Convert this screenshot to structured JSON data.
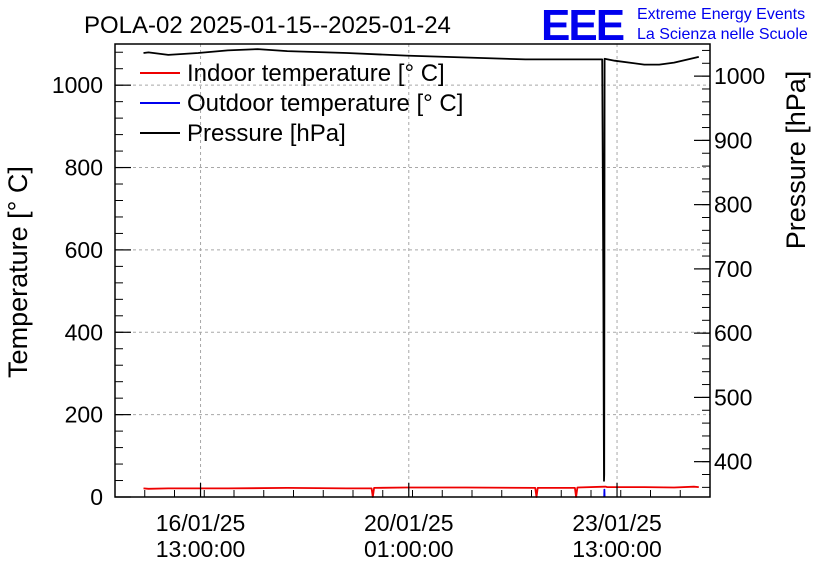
{
  "logo": {
    "mark": "EEE",
    "line1": "Extreme Energy Events",
    "line2": "La Scienza nelle Scuole"
  },
  "chart_data": {
    "type": "line",
    "title": "POLA-02 2025-01-15--2025-01-24",
    "ylabel": "Temperature [° C]",
    "y2label": "Pressure [hPa]",
    "grid": true,
    "legend_position": "top-left",
    "x_start": "2025-01-15 02:30:00",
    "x_end": "2025-01-25 02:30:00",
    "ylim": [
      0,
      1100
    ],
    "y2lim": [
      345,
      1050
    ],
    "y_ticks": [
      0,
      200,
      400,
      600,
      800,
      1000
    ],
    "y2_ticks": [
      400,
      500,
      600,
      700,
      800,
      900,
      1000
    ],
    "x_ticks": [
      {
        "x": "2025-01-16 13:00:00",
        "date": "16/01/25",
        "time": "13:00:00"
      },
      {
        "x": "2025-01-20 01:00:00",
        "date": "20/01/25",
        "time": "01:00:00"
      },
      {
        "x": "2025-01-23 13:00:00",
        "date": "23/01/25",
        "time": "13:00:00"
      }
    ],
    "series": [
      {
        "name": "Indoor temperature [° C]",
        "color": "#ee0000",
        "axis": "left",
        "points": [
          [
            "2025-01-15 14:00:00",
            21
          ],
          [
            "2025-01-15 16:00:00",
            20
          ],
          [
            "2025-01-16 00:00:00",
            21
          ],
          [
            "2025-01-17 00:00:00",
            21
          ],
          [
            "2025-01-18 00:00:00",
            22
          ],
          [
            "2025-01-19 00:00:00",
            21
          ],
          [
            "2025-01-19 10:00:00",
            21
          ],
          [
            "2025-01-19 10:30:00",
            0
          ],
          [
            "2025-01-19 11:00:00",
            22
          ],
          [
            "2025-01-20 00:00:00",
            23
          ],
          [
            "2025-01-21 00:00:00",
            23
          ],
          [
            "2025-01-22 04:00:00",
            22
          ],
          [
            "2025-01-22 04:30:00",
            0
          ],
          [
            "2025-01-22 05:00:00",
            22
          ],
          [
            "2025-01-22 20:00:00",
            22
          ],
          [
            "2025-01-22 20:30:00",
            0
          ],
          [
            "2025-01-22 21:00:00",
            23
          ],
          [
            "2025-01-23 08:00:00",
            25
          ],
          [
            "2025-01-23 08:30:00",
            25
          ],
          [
            "2025-01-23 09:00:00",
            24
          ],
          [
            "2025-01-24 00:00:00",
            24
          ],
          [
            "2025-01-24 12:00:00",
            23
          ],
          [
            "2025-01-24 20:00:00",
            25
          ],
          [
            "2025-01-24 22:00:00",
            24
          ]
        ]
      },
      {
        "name": "Outdoor temperature [° C]",
        "color": "#0000ee",
        "axis": "left",
        "points": [
          [
            "2025-01-23 07:50:00",
            0
          ],
          [
            "2025-01-23 07:55:00",
            18
          ],
          [
            "2025-01-23 08:00:00",
            0
          ]
        ]
      },
      {
        "name": "Pressure [hPa]",
        "color": "#000000",
        "axis": "right",
        "points": [
          [
            "2025-01-15 14:00:00",
            1036
          ],
          [
            "2025-01-15 16:00:00",
            1037
          ],
          [
            "2025-01-16 00:00:00",
            1033
          ],
          [
            "2025-01-16 12:00:00",
            1036
          ],
          [
            "2025-01-17 00:00:00",
            1040
          ],
          [
            "2025-01-17 12:00:00",
            1042
          ],
          [
            "2025-01-18 00:00:00",
            1039
          ],
          [
            "2025-01-19 00:00:00",
            1036
          ],
          [
            "2025-01-20 00:00:00",
            1032
          ],
          [
            "2025-01-21 00:00:00",
            1029
          ],
          [
            "2025-01-22 00:00:00",
            1026
          ],
          [
            "2025-01-23 00:00:00",
            1026
          ],
          [
            "2025-01-23 06:00:00",
            1026
          ],
          [
            "2025-01-23 07:00:00",
            1026
          ],
          [
            "2025-01-23 07:15:00",
            850
          ],
          [
            "2025-01-23 07:30:00",
            650
          ],
          [
            "2025-01-23 07:40:00",
            450
          ],
          [
            "2025-01-23 07:45:00",
            370
          ],
          [
            "2025-01-23 07:50:00",
            380
          ],
          [
            "2025-01-23 08:00:00",
            1027
          ],
          [
            "2025-01-23 12:00:00",
            1024
          ],
          [
            "2025-01-24 00:00:00",
            1018
          ],
          [
            "2025-01-24 06:00:00",
            1018
          ],
          [
            "2025-01-24 12:00:00",
            1021
          ],
          [
            "2025-01-24 22:00:00",
            1030
          ]
        ]
      }
    ]
  }
}
